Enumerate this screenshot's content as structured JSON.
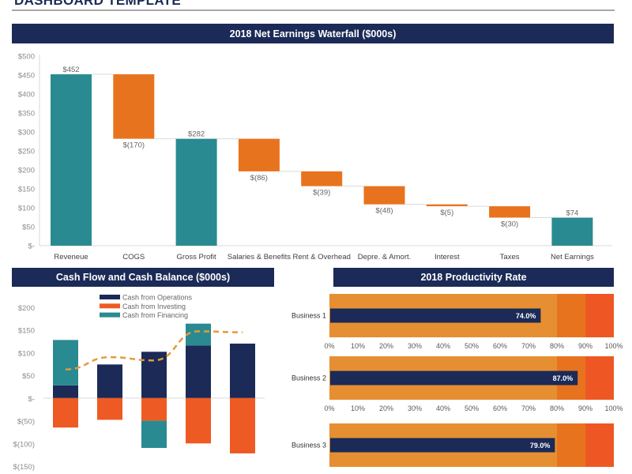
{
  "page": {
    "title": "DASHBOARD TEMPLATE"
  },
  "colors": {
    "navy": "#1b2a57",
    "teal": "#2a8a91",
    "orange": "#e8731e",
    "red_orange": "#ee5a23",
    "band_low": "#e68f32",
    "band_mid": "#e8731e",
    "band_high": "#ee5724",
    "dashed_line": "#e59a3a"
  },
  "chart_data": [
    {
      "id": "waterfall",
      "type": "bar",
      "subtype": "waterfall",
      "title": "2018 Net Earnings Waterfall ($000s)",
      "categories": [
        "Reveneue",
        "COGS",
        "Gross Profit",
        "Salaries & Benefits",
        "Rent & Overhead",
        "Depre. & Amort.",
        "Interest",
        "Taxes",
        "Net Earnings"
      ],
      "values": [
        452,
        -170,
        282,
        -86,
        -39,
        -48,
        -5,
        -30,
        74
      ],
      "kinds": [
        "total",
        "delta",
        "total",
        "delta",
        "delta",
        "delta",
        "delta",
        "delta",
        "total"
      ],
      "data_labels": [
        "$452",
        "$(170)",
        "$282",
        "$(86)",
        "$(39)",
        "$(48)",
        "$(5)",
        "$(30)",
        "$74"
      ],
      "yticks": [
        "$-",
        "$50",
        "$100",
        "$150",
        "$200",
        "$250",
        "$300",
        "$350",
        "$400",
        "$450",
        "$500"
      ],
      "ylim": [
        0,
        500
      ],
      "xlabel": "",
      "ylabel": "",
      "grid": false,
      "legend": "none"
    },
    {
      "id": "cashflow",
      "type": "bar",
      "subtype": "stacked-with-line",
      "title": "Cash Flow and Cash Balance ($000s)",
      "categories": [
        "",
        "",
        "",
        "",
        ""
      ],
      "series": [
        {
          "name": "Cash from Operations",
          "values": [
            28,
            74,
            102,
            116,
            120
          ]
        },
        {
          "name": "Cash from Investing",
          "values": [
            -65,
            -48,
            -50,
            -100,
            -122
          ]
        },
        {
          "name": "Cash from Financing",
          "values": [
            100,
            0,
            -60,
            48,
            0
          ]
        },
        {
          "name": "Cash Balance",
          "values": [
            63,
            90,
            83,
            147,
            145
          ],
          "style": "dashed-line"
        }
      ],
      "yticks": [
        "$(150)",
        "$(100)",
        "$(50)",
        "$-",
        "$50",
        "$100",
        "$150",
        "$200"
      ],
      "ylim": [
        -150,
        200
      ],
      "xlabel": "",
      "ylabel": "",
      "grid": false,
      "legend": "top-center"
    },
    {
      "id": "productivity",
      "type": "bar",
      "subtype": "bullet",
      "title": "2018 Productivity Rate",
      "categories": [
        "Business 1",
        "Business 2",
        "Business 3"
      ],
      "values": [
        74.0,
        87.0,
        79.0
      ],
      "data_labels": [
        "74.0%",
        "87.0%",
        "79.0%"
      ],
      "bands": [
        80,
        90,
        100
      ],
      "xticks": [
        "0%",
        "10%",
        "20%",
        "30%",
        "40%",
        "50%",
        "60%",
        "70%",
        "80%",
        "90%",
        "100%"
      ],
      "xlim": [
        0,
        100
      ],
      "grid": false,
      "legend": "none"
    }
  ]
}
